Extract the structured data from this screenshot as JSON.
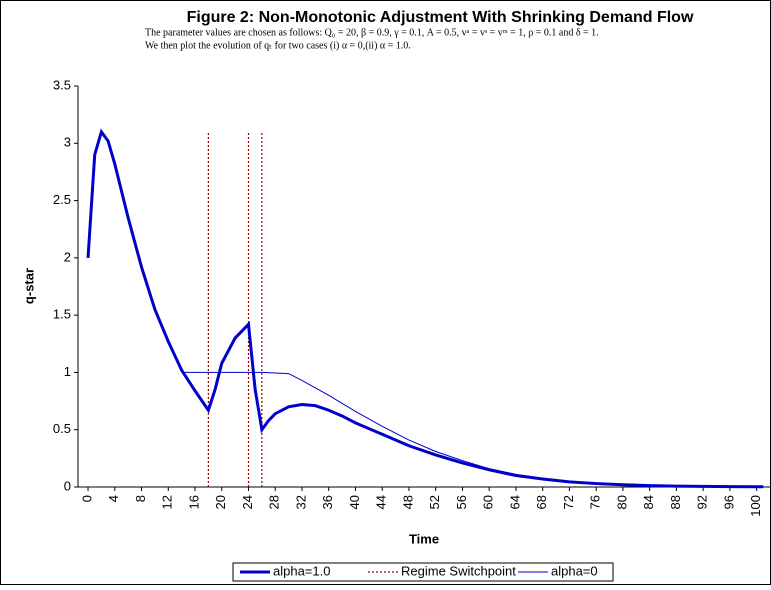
{
  "chart_data": {
    "type": "line",
    "title": "Figure 2: Non-Monotonic Adjustment With Shrinking Demand Flow",
    "subtitle": [
      "The parameter values are chosen as follows: Q₀ = 20, β = 0.9, γ = 0.1, A = 0.5, vᵃ = vˢ = vᵐ = 1, ρ = 0.1 and δ = 1.",
      "We then plot the evolution of qₜ for two cases (i) α = 0,(ii) α = 1.0."
    ],
    "x_label": "Time",
    "y_label": "q-star",
    "xlim": [
      -1.5,
      102
    ],
    "ylim": [
      0,
      3.5
    ],
    "xticks": [
      0,
      4,
      8,
      12,
      16,
      20,
      24,
      28,
      32,
      36,
      40,
      44,
      48,
      52,
      56,
      60,
      64,
      68,
      72,
      76,
      80,
      84,
      88,
      92,
      96,
      100
    ],
    "yticks": [
      0,
      0.5,
      1,
      1.5,
      2,
      2.5,
      3,
      3.5
    ],
    "series": [
      {
        "name": "alpha=1.0",
        "color": "#0000cc",
        "width": 3,
        "x": [
          0,
          1,
          2,
          3,
          4,
          6,
          8,
          10,
          12,
          14,
          16,
          18,
          19,
          20,
          22,
          24,
          25,
          26,
          27,
          28,
          30,
          32,
          34,
          36,
          38,
          40,
          44,
          48,
          52,
          56,
          60,
          64,
          68,
          72,
          76,
          80,
          84,
          88,
          92,
          96,
          100,
          101
        ],
        "values": [
          2.0,
          2.9,
          3.1,
          3.02,
          2.82,
          2.35,
          1.92,
          1.55,
          1.27,
          1.02,
          0.84,
          0.67,
          0.85,
          1.08,
          1.3,
          1.42,
          0.85,
          0.5,
          0.58,
          0.64,
          0.7,
          0.72,
          0.71,
          0.67,
          0.62,
          0.56,
          0.46,
          0.36,
          0.28,
          0.21,
          0.15,
          0.1,
          0.07,
          0.045,
          0.03,
          0.02,
          0.012,
          0.008,
          0.005,
          0.003,
          0.002,
          0.002
        ]
      },
      {
        "name": "alpha=0",
        "color": "#0000cc",
        "width": 1,
        "x": [
          14,
          20,
          26,
          30,
          32,
          36,
          40,
          44,
          48,
          52,
          56,
          60,
          64,
          68,
          72,
          76,
          80,
          84,
          88,
          92,
          96,
          100,
          101
        ],
        "values": [
          1.0,
          1.0,
          1.0,
          0.99,
          0.93,
          0.8,
          0.66,
          0.53,
          0.41,
          0.31,
          0.23,
          0.16,
          0.11,
          0.075,
          0.05,
          0.033,
          0.022,
          0.014,
          0.009,
          0.006,
          0.004,
          0.002,
          0.002
        ]
      }
    ],
    "switchpoints": {
      "name": "Regime Switchpoint",
      "color": "#990000",
      "x": [
        18,
        24,
        26
      ],
      "span": [
        0,
        3.1
      ]
    }
  }
}
